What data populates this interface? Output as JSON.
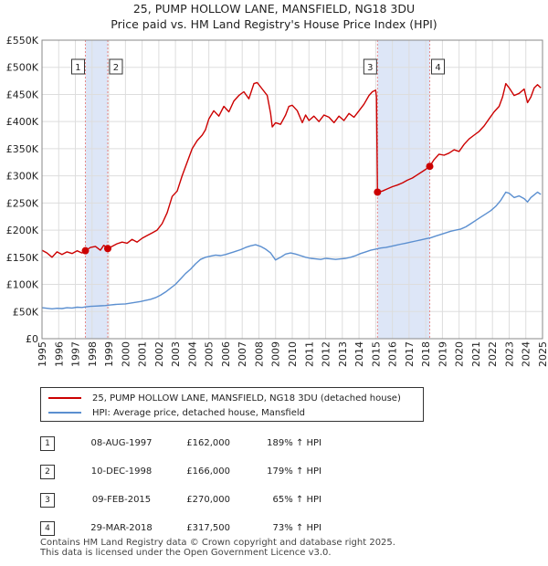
{
  "chart_data": {
    "type": "line",
    "title": "25, PUMP HOLLOW LANE, MANSFIELD, NG18 3DU",
    "subtitle": "Price paid vs. HM Land Registry's House Price Index (HPI)",
    "x_range": [
      1995,
      2025
    ],
    "ylim": [
      0,
      550000
    ],
    "y_ticks": [
      0,
      50000,
      100000,
      150000,
      200000,
      250000,
      300000,
      350000,
      400000,
      450000,
      500000,
      550000
    ],
    "y_tick_labels": [
      "£0",
      "£50K",
      "£100K",
      "£150K",
      "£200K",
      "£250K",
      "£300K",
      "£350K",
      "£400K",
      "£450K",
      "£500K",
      "£550K"
    ],
    "x_ticks": [
      "1995",
      "1996",
      "1997",
      "1998",
      "1999",
      "2000",
      "2001",
      "2002",
      "2003",
      "2004",
      "2005",
      "2006",
      "2007",
      "2008",
      "2009",
      "2010",
      "2011",
      "2012",
      "2013",
      "2014",
      "2015",
      "2016",
      "2017",
      "2018",
      "2019",
      "2020",
      "2021",
      "2022",
      "2023",
      "2024",
      "2025"
    ],
    "grid": true,
    "series": [
      {
        "name": "25, PUMP HOLLOW LANE, MANSFIELD, NG18 3DU (detached house)",
        "color": "#cc0000",
        "points": [
          [
            1995.0,
            163000
          ],
          [
            1995.3,
            158000
          ],
          [
            1995.6,
            150000
          ],
          [
            1995.9,
            160000
          ],
          [
            1996.2,
            155000
          ],
          [
            1996.5,
            160000
          ],
          [
            1996.8,
            157000
          ],
          [
            1997.1,
            162000
          ],
          [
            1997.4,
            158000
          ],
          [
            1997.6,
            162000
          ],
          [
            1997.9,
            168000
          ],
          [
            1998.2,
            170000
          ],
          [
            1998.5,
            163000
          ],
          [
            1998.7,
            172000
          ],
          [
            1998.94,
            166000
          ],
          [
            1999.2,
            170000
          ],
          [
            1999.5,
            175000
          ],
          [
            1999.8,
            178000
          ],
          [
            2000.1,
            176000
          ],
          [
            2000.4,
            183000
          ],
          [
            2000.7,
            178000
          ],
          [
            2001.0,
            185000
          ],
          [
            2001.3,
            190000
          ],
          [
            2001.6,
            195000
          ],
          [
            2001.9,
            200000
          ],
          [
            2002.2,
            212000
          ],
          [
            2002.5,
            232000
          ],
          [
            2002.8,
            262000
          ],
          [
            2003.1,
            272000
          ],
          [
            2003.4,
            300000
          ],
          [
            2003.7,
            325000
          ],
          [
            2004.0,
            350000
          ],
          [
            2004.3,
            365000
          ],
          [
            2004.6,
            375000
          ],
          [
            2004.8,
            385000
          ],
          [
            2005.0,
            405000
          ],
          [
            2005.3,
            420000
          ],
          [
            2005.6,
            410000
          ],
          [
            2005.9,
            428000
          ],
          [
            2006.2,
            418000
          ],
          [
            2006.5,
            438000
          ],
          [
            2006.8,
            448000
          ],
          [
            2007.1,
            455000
          ],
          [
            2007.4,
            442000
          ],
          [
            2007.7,
            470000
          ],
          [
            2007.9,
            472000
          ],
          [
            2008.2,
            460000
          ],
          [
            2008.5,
            448000
          ],
          [
            2008.7,
            415000
          ],
          [
            2008.8,
            390000
          ],
          [
            2009.0,
            398000
          ],
          [
            2009.3,
            395000
          ],
          [
            2009.6,
            412000
          ],
          [
            2009.8,
            428000
          ],
          [
            2010.0,
            430000
          ],
          [
            2010.3,
            420000
          ],
          [
            2010.6,
            398000
          ],
          [
            2010.8,
            412000
          ],
          [
            2011.0,
            402000
          ],
          [
            2011.3,
            410000
          ],
          [
            2011.6,
            400000
          ],
          [
            2011.9,
            412000
          ],
          [
            2012.2,
            408000
          ],
          [
            2012.5,
            398000
          ],
          [
            2012.8,
            410000
          ],
          [
            2013.1,
            402000
          ],
          [
            2013.4,
            415000
          ],
          [
            2013.7,
            408000
          ],
          [
            2014.0,
            420000
          ],
          [
            2014.3,
            432000
          ],
          [
            2014.6,
            448000
          ],
          [
            2014.8,
            455000
          ],
          [
            2015.0,
            458000
          ],
          [
            2015.05,
            445000
          ],
          [
            2015.11,
            270000
          ],
          [
            2015.4,
            272000
          ],
          [
            2015.7,
            276000
          ],
          [
            2016.0,
            280000
          ],
          [
            2016.3,
            283000
          ],
          [
            2016.6,
            287000
          ],
          [
            2016.9,
            292000
          ],
          [
            2017.2,
            296000
          ],
          [
            2017.5,
            302000
          ],
          [
            2017.8,
            308000
          ],
          [
            2018.0,
            312000
          ],
          [
            2018.24,
            317500
          ],
          [
            2018.5,
            330000
          ],
          [
            2018.8,
            340000
          ],
          [
            2019.1,
            338000
          ],
          [
            2019.4,
            342000
          ],
          [
            2019.7,
            348000
          ],
          [
            2020.0,
            345000
          ],
          [
            2020.3,
            358000
          ],
          [
            2020.6,
            368000
          ],
          [
            2020.9,
            375000
          ],
          [
            2021.2,
            382000
          ],
          [
            2021.5,
            392000
          ],
          [
            2021.8,
            405000
          ],
          [
            2022.1,
            418000
          ],
          [
            2022.4,
            428000
          ],
          [
            2022.6,
            445000
          ],
          [
            2022.8,
            470000
          ],
          [
            2023.0,
            462000
          ],
          [
            2023.3,
            448000
          ],
          [
            2023.6,
            452000
          ],
          [
            2023.9,
            460000
          ],
          [
            2024.1,
            435000
          ],
          [
            2024.3,
            445000
          ],
          [
            2024.5,
            462000
          ],
          [
            2024.7,
            468000
          ],
          [
            2024.9,
            462000
          ]
        ]
      },
      {
        "name": "HPI: Average price, detached house, Mansfield",
        "color": "#5b8fd0",
        "points": [
          [
            1995.0,
            57000
          ],
          [
            1995.3,
            56000
          ],
          [
            1995.6,
            55000
          ],
          [
            1995.9,
            56000
          ],
          [
            1996.2,
            55500
          ],
          [
            1996.5,
            57000
          ],
          [
            1996.8,
            56500
          ],
          [
            1997.1,
            58000
          ],
          [
            1997.4,
            57500
          ],
          [
            1997.6,
            58500
          ],
          [
            1997.9,
            59500
          ],
          [
            1998.2,
            60000
          ],
          [
            1998.5,
            60500
          ],
          [
            1998.8,
            61000
          ],
          [
            1999.1,
            62000
          ],
          [
            1999.4,
            63000
          ],
          [
            1999.7,
            63500
          ],
          [
            2000.0,
            64000
          ],
          [
            2000.3,
            65500
          ],
          [
            2000.6,
            67000
          ],
          [
            2000.9,
            68500
          ],
          [
            2001.2,
            70500
          ],
          [
            2001.5,
            72500
          ],
          [
            2001.8,
            75500
          ],
          [
            2002.1,
            80000
          ],
          [
            2002.4,
            86000
          ],
          [
            2002.7,
            93000
          ],
          [
            2003.0,
            100000
          ],
          [
            2003.3,
            110000
          ],
          [
            2003.6,
            120000
          ],
          [
            2003.9,
            128000
          ],
          [
            2004.2,
            138000
          ],
          [
            2004.5,
            146000
          ],
          [
            2004.8,
            150000
          ],
          [
            2005.1,
            152000
          ],
          [
            2005.4,
            154000
          ],
          [
            2005.7,
            153000
          ],
          [
            2006.0,
            155000
          ],
          [
            2006.3,
            158000
          ],
          [
            2006.6,
            161000
          ],
          [
            2006.9,
            164000
          ],
          [
            2007.2,
            168000
          ],
          [
            2007.5,
            171000
          ],
          [
            2007.8,
            173000
          ],
          [
            2008.1,
            170000
          ],
          [
            2008.4,
            165000
          ],
          [
            2008.7,
            158000
          ],
          [
            2009.0,
            145000
          ],
          [
            2009.3,
            150000
          ],
          [
            2009.6,
            156000
          ],
          [
            2009.9,
            158000
          ],
          [
            2010.2,
            156000
          ],
          [
            2010.5,
            153000
          ],
          [
            2010.8,
            150000
          ],
          [
            2011.1,
            148000
          ],
          [
            2011.4,
            147000
          ],
          [
            2011.7,
            146000
          ],
          [
            2012.0,
            148000
          ],
          [
            2012.3,
            147000
          ],
          [
            2012.6,
            146000
          ],
          [
            2012.9,
            147000
          ],
          [
            2013.2,
            148000
          ],
          [
            2013.5,
            150000
          ],
          [
            2013.8,
            153000
          ],
          [
            2014.1,
            157000
          ],
          [
            2014.4,
            160000
          ],
          [
            2014.7,
            163000
          ],
          [
            2015.0,
            165000
          ],
          [
            2015.3,
            167000
          ],
          [
            2015.6,
            168000
          ],
          [
            2015.9,
            170000
          ],
          [
            2016.2,
            172000
          ],
          [
            2016.5,
            174000
          ],
          [
            2016.8,
            176000
          ],
          [
            2017.1,
            178000
          ],
          [
            2017.4,
            180000
          ],
          [
            2017.7,
            182000
          ],
          [
            2018.0,
            184000
          ],
          [
            2018.3,
            186000
          ],
          [
            2018.6,
            189000
          ],
          [
            2018.9,
            192000
          ],
          [
            2019.2,
            195000
          ],
          [
            2019.5,
            198000
          ],
          [
            2019.8,
            200000
          ],
          [
            2020.1,
            202000
          ],
          [
            2020.4,
            206000
          ],
          [
            2020.7,
            212000
          ],
          [
            2021.0,
            218000
          ],
          [
            2021.3,
            224000
          ],
          [
            2021.6,
            230000
          ],
          [
            2021.9,
            236000
          ],
          [
            2022.2,
            244000
          ],
          [
            2022.5,
            255000
          ],
          [
            2022.8,
            270000
          ],
          [
            2023.0,
            268000
          ],
          [
            2023.3,
            260000
          ],
          [
            2023.6,
            263000
          ],
          [
            2023.9,
            258000
          ],
          [
            2024.1,
            252000
          ],
          [
            2024.3,
            260000
          ],
          [
            2024.5,
            265000
          ],
          [
            2024.7,
            270000
          ],
          [
            2024.9,
            266000
          ]
        ]
      }
    ],
    "sales": [
      {
        "num": "1",
        "x": 1997.6,
        "y": 162000
      },
      {
        "num": "2",
        "x": 1998.94,
        "y": 166000
      },
      {
        "num": "3",
        "x": 2015.11,
        "y": 270000
      },
      {
        "num": "4",
        "x": 2018.24,
        "y": 317500
      }
    ]
  },
  "legend": {
    "property": "25, PUMP HOLLOW LANE, MANSFIELD, NG18 3DU (detached house)",
    "hpi": "HPI: Average price, detached house, Mansfield"
  },
  "sales_table": [
    {
      "num": "1",
      "date": "08-AUG-1997",
      "price": "£162,000",
      "hpi": "189% ↑ HPI"
    },
    {
      "num": "2",
      "date": "10-DEC-1998",
      "price": "£166,000",
      "hpi": "179% ↑ HPI"
    },
    {
      "num": "3",
      "date": "09-FEB-2015",
      "price": "£270,000",
      "hpi": "65% ↑ HPI"
    },
    {
      "num": "4",
      "date": "29-MAR-2018",
      "price": "£317,500",
      "hpi": "73% ↑ HPI"
    }
  ],
  "footer": {
    "line1": "Contains HM Land Registry data © Crown copyright and database right 2025.",
    "line2": "This data is licensed under the Open Government Licence v3.0."
  },
  "colors": {
    "property_line": "#cc0000",
    "hpi_line": "#5b8fd0",
    "sale_band": "#dde6f7",
    "sale_marker_line": "#e88a8a"
  }
}
